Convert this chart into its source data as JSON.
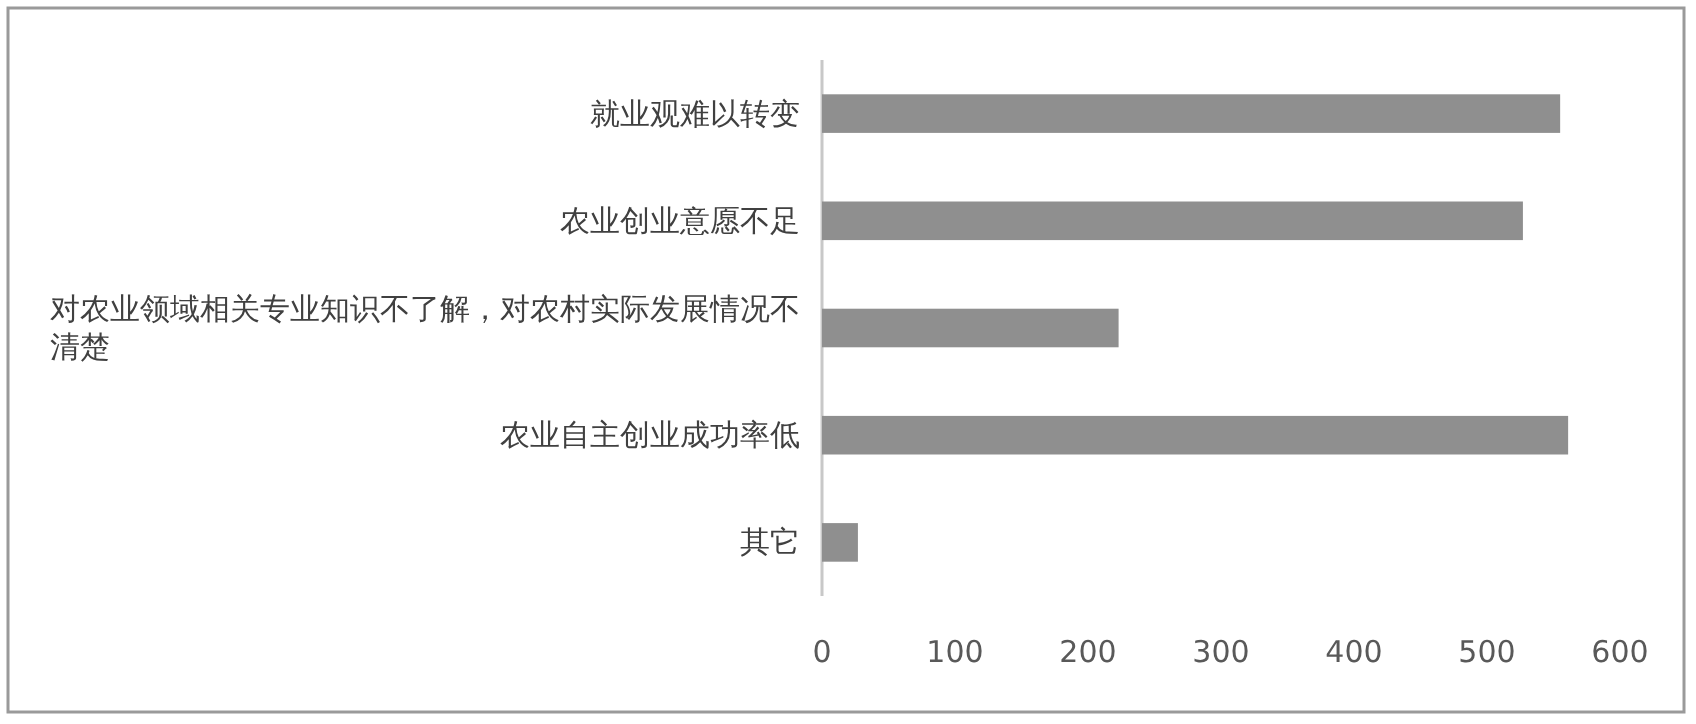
{
  "chart_data": {
    "type": "bar",
    "orientation": "horizontal",
    "categories": [
      "就业观难以转变",
      "农业创业意愿不足",
      "对农业领域相关专业知识不了解，对农村实际发展情况不清楚",
      "农业自主创业成功率低",
      "其它"
    ],
    "values": [
      555,
      527,
      223,
      561,
      27
    ],
    "color": "#8f8f8f",
    "xlim": [
      0,
      600
    ],
    "xticks": [
      0,
      100,
      200,
      300,
      400,
      500,
      600
    ]
  }
}
